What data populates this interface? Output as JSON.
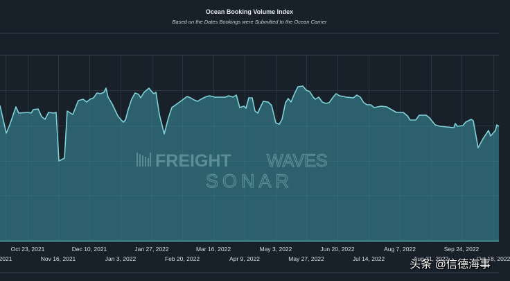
{
  "header": {
    "title": "Ocean Booking Volume Index",
    "subtitle": "Based on the Dates Bookings were Submitted to the Ocean Carrier"
  },
  "watermark": {
    "brand": "FREIGHT",
    "brand_light": "WAVES",
    "product": "SONAR"
  },
  "credit": "头条 @信德海事",
  "colors": {
    "background": "#18202a",
    "line": "#7fd3d9",
    "fill": "#2d6470",
    "grid": "#2a3540"
  },
  "xaxis": {
    "row1": [
      {
        "label": "Oct 23, 2021",
        "x": 40
      },
      {
        "label": "Dec 10, 2021",
        "x": 129
      },
      {
        "label": "Jan 27, 2022",
        "x": 219
      },
      {
        "label": "Mar 16, 2022",
        "x": 308
      },
      {
        "label": "May 3, 2022",
        "x": 398
      },
      {
        "label": "Jun 20, 2022",
        "x": 487
      },
      {
        "label": "Aug 7, 2022",
        "x": 577
      },
      {
        "label": "Sep 24, 2022",
        "x": 666
      }
    ],
    "row2": [
      {
        "label": "2021",
        "x": 8
      },
      {
        "label": "Nov 16, 2021",
        "x": 84
      },
      {
        "label": "Jan 3, 2022",
        "x": 174
      },
      {
        "label": "Feb 20, 2022",
        "x": 263
      },
      {
        "label": "Apr 9, 2022",
        "x": 353
      },
      {
        "label": "May 27, 2022",
        "x": 442
      },
      {
        "label": "Jul 14, 2022",
        "x": 532
      },
      {
        "label": "Aug 31, 2022",
        "x": 622
      },
      {
        "label": "Oct 18, 2022",
        "x": 712
      }
    ]
  },
  "chart_data": {
    "type": "area",
    "title": "Ocean Booking Volume Index",
    "subtitle": "Based on the Dates Bookings were Submitted to the Ocean Carrier",
    "xlabel": "",
    "ylabel": "",
    "x_tick_labels": [
      "2021",
      "Oct 23, 2021",
      "Nov 16, 2021",
      "Dec 10, 2021",
      "Jan 3, 2022",
      "Jan 27, 2022",
      "Feb 20, 2022",
      "Mar 16, 2022",
      "Apr 9, 2022",
      "May 3, 2022",
      "May 27, 2022",
      "Jun 20, 2022",
      "Jul 14, 2022",
      "Aug 7, 2022",
      "Aug 31, 2022",
      "Sep 24, 2022",
      "Oct 18, 2022"
    ],
    "grid": true,
    "legend": "none",
    "series": [
      {
        "name": "Ocean Booking Volume Index",
        "note": "pixel-traced points [x_px, y_px] within 720x405 frame; lower y = higher index",
        "points": [
          [
            0,
            152
          ],
          [
            9,
            192
          ],
          [
            14,
            180
          ],
          [
            23,
            154
          ],
          [
            27,
            163
          ],
          [
            40,
            162
          ],
          [
            45,
            163
          ],
          [
            48,
            158
          ],
          [
            55,
            157
          ],
          [
            60,
            168
          ],
          [
            65,
            172
          ],
          [
            70,
            162
          ],
          [
            78,
            163
          ],
          [
            81,
            162
          ],
          [
            85,
            232
          ],
          [
            93,
            228
          ],
          [
            97,
            160
          ],
          [
            105,
            165
          ],
          [
            113,
            145
          ],
          [
            120,
            143
          ],
          [
            125,
            147
          ],
          [
            130,
            143
          ],
          [
            135,
            141
          ],
          [
            140,
            134
          ],
          [
            145,
            135
          ],
          [
            150,
            133
          ],
          [
            153,
            127
          ],
          [
            156,
            140
          ],
          [
            162,
            150
          ],
          [
            170,
            167
          ],
          [
            175,
            173
          ],
          [
            178,
            176
          ],
          [
            181,
            173
          ],
          [
            185,
            158
          ],
          [
            190,
            143
          ],
          [
            195,
            134
          ],
          [
            200,
            136
          ],
          [
            203,
            141
          ],
          [
            208,
            133
          ],
          [
            215,
            127
          ],
          [
            218,
            131
          ],
          [
            222,
            135
          ],
          [
            225,
            133
          ],
          [
            230,
            165
          ],
          [
            237,
            193
          ],
          [
            243,
            170
          ],
          [
            248,
            155
          ],
          [
            255,
            150
          ],
          [
            262,
            145
          ],
          [
            270,
            139
          ],
          [
            275,
            141
          ],
          [
            280,
            144
          ],
          [
            285,
            146
          ],
          [
            290,
            143
          ],
          [
            296,
            140
          ],
          [
            302,
            138
          ],
          [
            310,
            140
          ],
          [
            318,
            140
          ],
          [
            325,
            140
          ],
          [
            330,
            138
          ],
          [
            336,
            140
          ],
          [
            341,
            137
          ],
          [
            346,
            155
          ],
          [
            352,
            153
          ],
          [
            355,
            156
          ],
          [
            359,
            141
          ],
          [
            364,
            141
          ],
          [
            368,
            160
          ],
          [
            372,
            163
          ],
          [
            375,
            156
          ],
          [
            380,
            146
          ],
          [
            387,
            147
          ],
          [
            392,
            152
          ],
          [
            398,
            177
          ],
          [
            403,
            179
          ],
          [
            407,
            172
          ],
          [
            412,
            148
          ],
          [
            416,
            142
          ],
          [
            420,
            147
          ],
          [
            425,
            135
          ],
          [
            430,
            125
          ],
          [
            437,
            124
          ],
          [
            442,
            130
          ],
          [
            447,
            132
          ],
          [
            452,
            140
          ],
          [
            455,
            143
          ],
          [
            460,
            140
          ],
          [
            465,
            147
          ],
          [
            470,
            149
          ],
          [
            475,
            148
          ],
          [
            480,
            141
          ],
          [
            485,
            135
          ],
          [
            490,
            138
          ],
          [
            500,
            140
          ],
          [
            510,
            141
          ],
          [
            515,
            137
          ],
          [
            520,
            140
          ],
          [
            525,
            148
          ],
          [
            530,
            151
          ],
          [
            535,
            151
          ],
          [
            540,
            155
          ],
          [
            550,
            153
          ],
          [
            558,
            154
          ],
          [
            565,
            158
          ],
          [
            572,
            162
          ],
          [
            582,
            162
          ],
          [
            588,
            167
          ],
          [
            592,
            173
          ],
          [
            600,
            173
          ],
          [
            605,
            166
          ],
          [
            615,
            166
          ],
          [
            620,
            170
          ],
          [
            628,
            180
          ],
          [
            635,
            182
          ],
          [
            645,
            183
          ],
          [
            655,
            184
          ],
          [
            657,
            178
          ],
          [
            660,
            182
          ],
          [
            668,
            181
          ],
          [
            672,
            176
          ],
          [
            680,
            172
          ],
          [
            683,
            174
          ],
          [
            690,
            213
          ],
          [
            697,
            200
          ],
          [
            705,
            188
          ],
          [
            708,
            196
          ],
          [
            715,
            188
          ],
          [
            717,
            180
          ],
          [
            720,
            182
          ]
        ]
      }
    ]
  }
}
